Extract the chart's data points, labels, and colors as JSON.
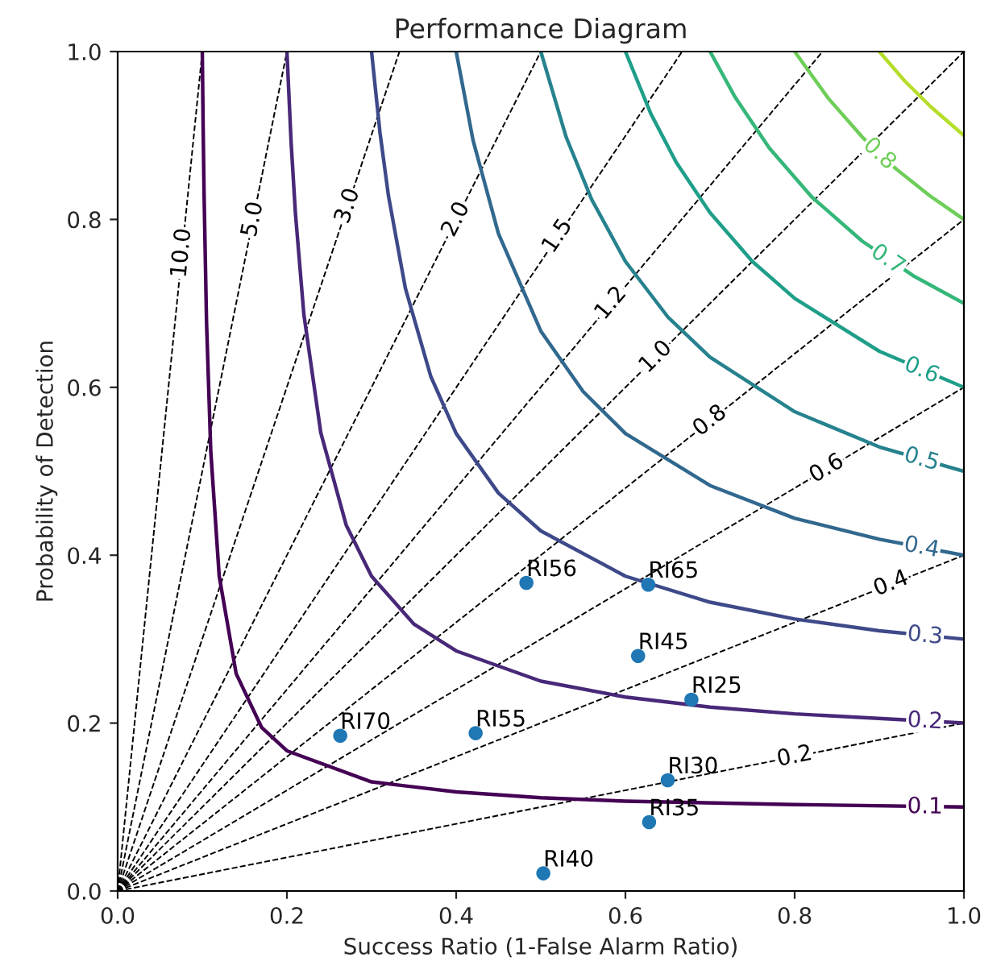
{
  "chart_data": {
    "type": "line",
    "title": "Performance Diagram",
    "xlabel": "Success Ratio (1-False Alarm Ratio)",
    "ylabel": "Probability of Detection",
    "xlim": [
      0,
      1
    ],
    "ylim": [
      0,
      1
    ],
    "xticks": [
      {
        "value": 0,
        "label": "0.0"
      },
      0.2,
      0.4,
      0.6,
      0.8,
      {
        "value": 1,
        "label": "1.0"
      }
    ],
    "yticks": [
      {
        "value": 0,
        "label": "0.0"
      },
      0.2,
      0.4,
      0.6,
      0.8,
      {
        "value": 1,
        "label": "1.0"
      }
    ],
    "grid": false,
    "series": [
      {
        "type": "line",
        "line_style": "solid",
        "color": "#440154",
        "x": [
          0.1,
          0.101,
          0.102,
          0.105,
          0.11,
          0.12,
          0.14,
          0.17,
          0.2,
          0.3,
          0.4,
          0.5,
          0.6,
          0.8,
          1.0
        ],
        "values": [
          1.0,
          0.91,
          0.836,
          0.678,
          0.524,
          0.375,
          0.259,
          0.195,
          0.167,
          0.13,
          0.118,
          0.111,
          0.107,
          0.103,
          0.1
        ]
      },
      {
        "type": "line",
        "line_style": "solid",
        "color": "#482878",
        "x": [
          0.2,
          0.205,
          0.21,
          0.22,
          0.24,
          0.27,
          0.3,
          0.35,
          0.4,
          0.5,
          0.6,
          0.7,
          0.8,
          1.0
        ],
        "values": [
          1.0,
          0.891,
          0.808,
          0.687,
          0.546,
          0.436,
          0.375,
          0.318,
          0.286,
          0.25,
          0.231,
          0.219,
          0.211,
          0.2
        ]
      },
      {
        "type": "line",
        "line_style": "solid",
        "color": "#3e4989",
        "x": [
          0.3,
          0.31,
          0.32,
          0.34,
          0.37,
          0.4,
          0.45,
          0.5,
          0.6,
          0.7,
          0.8,
          0.9,
          1.0
        ],
        "values": [
          1.0,
          0.903,
          0.828,
          0.718,
          0.613,
          0.545,
          0.474,
          0.429,
          0.375,
          0.344,
          0.324,
          0.31,
          0.3
        ]
      },
      {
        "type": "line",
        "line_style": "solid",
        "color": "#31688e",
        "x": [
          0.4,
          0.42,
          0.45,
          0.5,
          0.55,
          0.6,
          0.7,
          0.8,
          0.9,
          1.0
        ],
        "values": [
          1.0,
          0.894,
          0.783,
          0.667,
          0.595,
          0.545,
          0.483,
          0.444,
          0.419,
          0.4
        ]
      },
      {
        "type": "line",
        "line_style": "solid",
        "color": "#26828e",
        "x": [
          0.5,
          0.53,
          0.56,
          0.6,
          0.65,
          0.7,
          0.8,
          0.9,
          1.0
        ],
        "values": [
          1.0,
          0.898,
          0.824,
          0.75,
          0.684,
          0.636,
          0.571,
          0.529,
          0.5
        ]
      },
      {
        "type": "line",
        "line_style": "solid",
        "color": "#1f9e89",
        "x": [
          0.6,
          0.63,
          0.66,
          0.7,
          0.75,
          0.8,
          0.9,
          1.0
        ],
        "values": [
          1.0,
          0.926,
          0.868,
          0.808,
          0.75,
          0.706,
          0.643,
          0.6
        ]
      },
      {
        "type": "line",
        "line_style": "solid",
        "color": "#35b779",
        "x": [
          0.7,
          0.73,
          0.77,
          0.82,
          0.88,
          0.94,
          1.0
        ],
        "values": [
          1.0,
          0.945,
          0.885,
          0.827,
          0.774,
          0.733,
          0.7
        ]
      },
      {
        "type": "line",
        "line_style": "solid",
        "color": "#6ece58",
        "x": [
          0.8,
          0.84,
          0.88,
          0.92,
          0.96,
          1.0
        ],
        "values": [
          1.0,
          0.944,
          0.898,
          0.86,
          0.828,
          0.8
        ]
      },
      {
        "type": "line",
        "line_style": "solid",
        "color": "#b5de2b",
        "x": [
          0.9,
          0.93,
          0.96,
          1.0
        ],
        "values": [
          1.0,
          0.965,
          0.935,
          0.9
        ]
      },
      {
        "type": "line",
        "line_style": "dashed",
        "color": "#000000",
        "x": [
          0,
          1.0
        ],
        "values": [
          0,
          0.2
        ]
      },
      {
        "type": "line",
        "line_style": "dashed",
        "color": "#000000",
        "x": [
          0,
          1.0
        ],
        "values": [
          0,
          0.4
        ]
      },
      {
        "type": "line",
        "line_style": "dashed",
        "color": "#000000",
        "x": [
          0,
          1.0
        ],
        "values": [
          0,
          0.6
        ]
      },
      {
        "type": "line",
        "line_style": "dashed",
        "color": "#000000",
        "x": [
          0,
          1.0
        ],
        "values": [
          0,
          0.8
        ]
      },
      {
        "type": "line",
        "line_style": "dashed",
        "color": "#000000",
        "x": [
          0,
          1.0
        ],
        "values": [
          0,
          1.0
        ]
      },
      {
        "type": "line",
        "line_style": "dashed",
        "color": "#000000",
        "x": [
          0,
          0.833
        ],
        "values": [
          0,
          1.0
        ]
      },
      {
        "type": "line",
        "line_style": "dashed",
        "color": "#000000",
        "x": [
          0,
          0.667
        ],
        "values": [
          0,
          1.0
        ]
      },
      {
        "type": "line",
        "line_style": "dashed",
        "color": "#000000",
        "x": [
          0,
          0.5
        ],
        "values": [
          0,
          1.0
        ]
      },
      {
        "type": "line",
        "line_style": "dashed",
        "color": "#000000",
        "x": [
          0,
          0.333
        ],
        "values": [
          0,
          1.0
        ]
      },
      {
        "type": "line",
        "line_style": "dashed",
        "color": "#000000",
        "x": [
          0,
          0.2
        ],
        "values": [
          0,
          1.0
        ]
      },
      {
        "type": "line",
        "line_style": "dashed",
        "color": "#000000",
        "x": [
          0,
          0.1
        ],
        "values": [
          0,
          1.0
        ]
      },
      {
        "type": "scatter",
        "marker": "circle",
        "color": "#1f77b4",
        "x": [
          0.483,
          0.627,
          0.615,
          0.678,
          0.263,
          0.423,
          0.65,
          0.628,
          0.503
        ],
        "values": [
          0.367,
          0.365,
          0.28,
          0.228,
          0.185,
          0.188,
          0.132,
          0.082,
          0.021
        ],
        "value_labels": [
          "RI56",
          "RI65",
          "RI45",
          "RI25",
          "RI70",
          "RI55",
          "RI30",
          "RI35",
          "RI40"
        ]
      }
    ],
    "annotations": [
      {
        "text": "0.1",
        "x": 0.954,
        "y": 0.1
      },
      {
        "text": "0.2",
        "x": 0.954,
        "y": 0.202
      },
      {
        "text": "0.3",
        "x": 0.954,
        "y": 0.304
      },
      {
        "text": "0.4",
        "x": 0.95,
        "y": 0.409
      },
      {
        "text": "0.5",
        "x": 0.95,
        "y": 0.514
      },
      {
        "text": "0.6",
        "x": 0.95,
        "y": 0.62
      },
      {
        "text": "0.7",
        "x": 0.91,
        "y": 0.752
      },
      {
        "text": "0.8",
        "x": 0.9,
        "y": 0.878
      },
      {
        "text": "10.0",
        "x": 0.076,
        "y": 0.76
      },
      {
        "text": "5.0",
        "x": 0.16,
        "y": 0.8
      },
      {
        "text": "3.0",
        "x": 0.272,
        "y": 0.816
      },
      {
        "text": "2.0",
        "x": 0.4,
        "y": 0.8
      },
      {
        "text": "1.5",
        "x": 0.52,
        "y": 0.78
      },
      {
        "text": "1.2",
        "x": 0.583,
        "y": 0.7
      },
      {
        "text": "1.0",
        "x": 0.636,
        "y": 0.636
      },
      {
        "text": "0.8",
        "x": 0.7,
        "y": 0.56
      },
      {
        "text": "0.6",
        "x": 0.838,
        "y": 0.503
      },
      {
        "text": "0.4",
        "x": 0.914,
        "y": 0.366
      },
      {
        "text": "0.2",
        "x": 0.8,
        "y": 0.16
      }
    ]
  }
}
